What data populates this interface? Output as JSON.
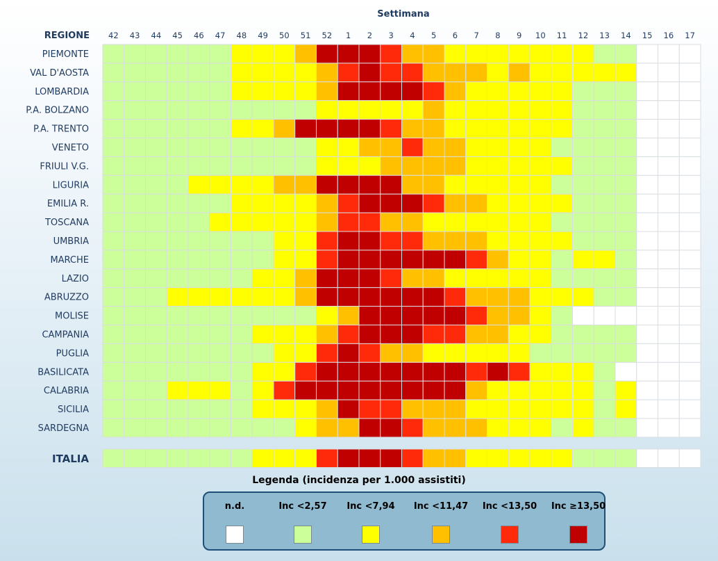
{
  "chart_data": {
    "type": "heatmap",
    "x_title": "Settimana",
    "y_title": "REGIONE",
    "weeks": [
      "42",
      "43",
      "44",
      "45",
      "46",
      "47",
      "48",
      "49",
      "50",
      "51",
      "52",
      "1",
      "2",
      "3",
      "4",
      "5",
      "6",
      "7",
      "8",
      "9",
      "10",
      "11",
      "12",
      "13",
      "14",
      "15",
      "16",
      "17"
    ],
    "regions": [
      "PIEMONTE",
      "VAL D'AOSTA",
      "LOMBARDIA",
      "P.A. BOLZANO",
      "P.A. TRENTO",
      "VENETO",
      "FRIULI V.G.",
      "LIGURIA",
      "EMILIA R.",
      "TOSCANA",
      "UMBRIA",
      "MARCHE",
      "LAZIO",
      "ABRUZZO",
      "MOLISE",
      "CAMPANIA",
      "PUGLIA",
      "BASILICATA",
      "CALABRIA",
      "SICILIA",
      "SARDEGNA"
    ],
    "level_key": "0 = n.d., 1 = Inc <2,57, 2 = Inc <7,94, 3 = Inc <11,47, 4 = Inc <13,50, 5 = Inc ≥13,50",
    "levels": [
      [
        1,
        1,
        1,
        1,
        1,
        1,
        2,
        2,
        2,
        3,
        5,
        5,
        5,
        4,
        3,
        3,
        2,
        2,
        2,
        2,
        2,
        2,
        2,
        1,
        1,
        0,
        0,
        0
      ],
      [
        1,
        1,
        1,
        1,
        1,
        1,
        2,
        2,
        2,
        2,
        3,
        4,
        5,
        4,
        4,
        3,
        3,
        3,
        2,
        3,
        2,
        2,
        2,
        2,
        2,
        0,
        0,
        0
      ],
      [
        1,
        1,
        1,
        1,
        1,
        1,
        2,
        2,
        2,
        2,
        3,
        5,
        5,
        5,
        5,
        4,
        3,
        2,
        2,
        2,
        2,
        2,
        1,
        1,
        1,
        0,
        0,
        0
      ],
      [
        1,
        1,
        1,
        1,
        1,
        1,
        1,
        1,
        1,
        1,
        2,
        2,
        2,
        2,
        2,
        3,
        2,
        2,
        2,
        2,
        2,
        2,
        1,
        1,
        1,
        0,
        0,
        0
      ],
      [
        1,
        1,
        1,
        1,
        1,
        1,
        2,
        2,
        3,
        5,
        5,
        5,
        5,
        4,
        3,
        3,
        2,
        2,
        2,
        2,
        2,
        2,
        1,
        1,
        1,
        0,
        0,
        0
      ],
      [
        1,
        1,
        1,
        1,
        1,
        1,
        1,
        1,
        1,
        1,
        2,
        2,
        3,
        3,
        4,
        3,
        3,
        2,
        2,
        2,
        2,
        1,
        1,
        1,
        1,
        0,
        0,
        0
      ],
      [
        1,
        1,
        1,
        1,
        1,
        1,
        1,
        1,
        1,
        1,
        2,
        2,
        2,
        3,
        3,
        3,
        3,
        2,
        2,
        2,
        2,
        2,
        1,
        1,
        1,
        0,
        0,
        0
      ],
      [
        1,
        1,
        1,
        1,
        2,
        2,
        2,
        2,
        3,
        3,
        5,
        5,
        5,
        5,
        3,
        3,
        2,
        2,
        2,
        2,
        2,
        1,
        1,
        1,
        1,
        0,
        0,
        0
      ],
      [
        1,
        1,
        1,
        1,
        1,
        1,
        2,
        2,
        2,
        2,
        3,
        4,
        5,
        5,
        5,
        4,
        3,
        3,
        2,
        2,
        2,
        2,
        1,
        1,
        1,
        0,
        0,
        0
      ],
      [
        1,
        1,
        1,
        1,
        1,
        2,
        2,
        2,
        2,
        2,
        3,
        4,
        4,
        3,
        3,
        2,
        2,
        2,
        2,
        2,
        2,
        1,
        1,
        1,
        1,
        0,
        0,
        0
      ],
      [
        1,
        1,
        1,
        1,
        1,
        1,
        1,
        1,
        2,
        2,
        4,
        5,
        5,
        4,
        4,
        3,
        3,
        3,
        2,
        2,
        2,
        2,
        1,
        1,
        1,
        0,
        0,
        0
      ],
      [
        1,
        1,
        1,
        1,
        1,
        1,
        1,
        1,
        2,
        2,
        4,
        5,
        5,
        5,
        5,
        5,
        5,
        4,
        3,
        2,
        2,
        1,
        2,
        2,
        1,
        0,
        0,
        0
      ],
      [
        1,
        1,
        1,
        1,
        1,
        1,
        1,
        2,
        2,
        3,
        5,
        5,
        5,
        4,
        3,
        3,
        2,
        2,
        2,
        2,
        2,
        1,
        1,
        1,
        1,
        0,
        0,
        0
      ],
      [
        1,
        1,
        1,
        2,
        2,
        2,
        2,
        2,
        2,
        3,
        5,
        5,
        5,
        5,
        5,
        5,
        4,
        3,
        3,
        3,
        2,
        2,
        2,
        1,
        1,
        0,
        0,
        0
      ],
      [
        1,
        1,
        1,
        1,
        1,
        1,
        1,
        1,
        1,
        1,
        2,
        3,
        5,
        5,
        5,
        5,
        5,
        4,
        3,
        3,
        2,
        1,
        0,
        0,
        0,
        0,
        0,
        0
      ],
      [
        1,
        1,
        1,
        1,
        1,
        1,
        1,
        2,
        2,
        2,
        3,
        4,
        5,
        5,
        5,
        4,
        4,
        3,
        3,
        2,
        2,
        1,
        1,
        1,
        1,
        0,
        0,
        0
      ],
      [
        1,
        1,
        1,
        1,
        1,
        1,
        1,
        1,
        2,
        2,
        4,
        5,
        4,
        3,
        3,
        2,
        2,
        2,
        2,
        2,
        1,
        1,
        1,
        1,
        1,
        0,
        0,
        0
      ],
      [
        1,
        1,
        1,
        1,
        1,
        1,
        1,
        2,
        2,
        4,
        5,
        5,
        5,
        5,
        5,
        5,
        5,
        4,
        5,
        4,
        2,
        2,
        2,
        1,
        0,
        0,
        0,
        0
      ],
      [
        1,
        1,
        1,
        2,
        2,
        2,
        1,
        2,
        4,
        5,
        5,
        5,
        5,
        5,
        5,
        5,
        5,
        3,
        2,
        2,
        2,
        2,
        2,
        1,
        2,
        0,
        0,
        0
      ],
      [
        1,
        1,
        1,
        1,
        1,
        1,
        1,
        2,
        2,
        2,
        3,
        5,
        4,
        4,
        3,
        3,
        3,
        2,
        2,
        2,
        2,
        2,
        2,
        1,
        2,
        0,
        0,
        0
      ],
      [
        1,
        1,
        1,
        1,
        1,
        1,
        1,
        1,
        1,
        2,
        3,
        3,
        5,
        5,
        4,
        3,
        3,
        3,
        2,
        2,
        2,
        1,
        2,
        1,
        1,
        0,
        0,
        0
      ]
    ],
    "total_label": "ITALIA",
    "total_levels": [
      1,
      1,
      1,
      1,
      1,
      1,
      1,
      2,
      2,
      2,
      4,
      5,
      5,
      5,
      4,
      3,
      3,
      2,
      2,
      2,
      2,
      2,
      1,
      1,
      1,
      0,
      0,
      0
    ]
  },
  "legend": {
    "title": "Legenda (incidenza per 1.000 assistiti)",
    "items": [
      {
        "label": "n.d.",
        "color": "#ffffff"
      },
      {
        "label": "Inc <2,57",
        "color": "#ccff99"
      },
      {
        "label": "Inc <7,94",
        "color": "#ffff00"
      },
      {
        "label": "Inc <11,47",
        "color": "#ffc000"
      },
      {
        "label": "Inc <13,50",
        "color": "#ff2a0a"
      },
      {
        "label": "Inc ≥13,50",
        "color": "#c00000"
      }
    ]
  }
}
